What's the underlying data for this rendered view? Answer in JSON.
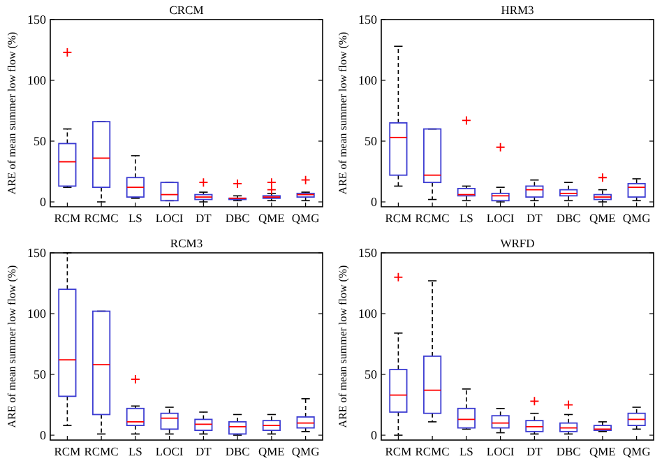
{
  "chart_data": [
    {
      "type": "box",
      "title": "CRCM",
      "ylabel": "ARE of mean summer low flow (%)",
      "categories": [
        "RCM",
        "RCMC",
        "LS",
        "LOCI",
        "DT",
        "DBC",
        "QME",
        "QMG"
      ],
      "ylim": [
        -4,
        150
      ],
      "yticks": [
        0,
        50,
        100,
        150
      ],
      "grid": false,
      "series": [
        {
          "color": "#3c3cd2",
          "boxes": [
            {
              "low": 12,
              "q1": 13,
              "median": 33,
              "q3": 48,
              "high": 60,
              "outliers": [
                123
              ]
            },
            {
              "low": 0,
              "q1": 12,
              "median": 36,
              "q3": 66,
              "high": 66
            },
            {
              "low": 3,
              "q1": 4,
              "median": 12,
              "q3": 20,
              "high": 38
            },
            {
              "low": 1,
              "q1": 1,
              "median": 6,
              "q3": 16,
              "high": 16
            },
            {
              "low": 0,
              "q1": 2,
              "median": 4,
              "q3": 6,
              "high": 8,
              "outliers": [
                16
              ]
            },
            {
              "low": 1,
              "q1": 2,
              "median": 3,
              "q3": 3,
              "high": 5,
              "outliers": [
                15
              ]
            },
            {
              "low": 1,
              "q1": 3,
              "median": 4,
              "q3": 5,
              "high": 7,
              "outliers": [
                10,
                16
              ]
            },
            {
              "low": 1,
              "q1": 4,
              "median": 6,
              "q3": 7,
              "high": 8,
              "outliers": [
                18
              ]
            }
          ]
        }
      ]
    },
    {
      "type": "box",
      "title": "HRM3",
      "ylabel": "ARE of mean summer low flow (%)",
      "categories": [
        "RCM",
        "RCMC",
        "LS",
        "LOCI",
        "DT",
        "DBC",
        "QME",
        "QMG"
      ],
      "ylim": [
        -4,
        150
      ],
      "yticks": [
        0,
        50,
        100,
        150
      ],
      "grid": false,
      "series": [
        {
          "color": "#3c3cd2",
          "boxes": [
            {
              "low": 13,
              "q1": 22,
              "median": 53,
              "q3": 65,
              "high": 128
            },
            {
              "low": 2,
              "q1": 16,
              "median": 22,
              "q3": 60,
              "high": 60
            },
            {
              "low": 1,
              "q1": 5,
              "median": 6,
              "q3": 11,
              "high": 13,
              "outliers": [
                67
              ]
            },
            {
              "low": 0,
              "q1": 1,
              "median": 5,
              "q3": 7,
              "high": 12,
              "outliers": [
                45
              ]
            },
            {
              "low": 1,
              "q1": 4,
              "median": 10,
              "q3": 13,
              "high": 18
            },
            {
              "low": 1,
              "q1": 5,
              "median": 7,
              "q3": 10,
              "high": 16
            },
            {
              "low": 0,
              "q1": 2,
              "median": 4,
              "q3": 6,
              "high": 10,
              "outliers": [
                20
              ]
            },
            {
              "low": 1,
              "q1": 4,
              "median": 12,
              "q3": 15,
              "high": 19
            }
          ]
        }
      ]
    },
    {
      "type": "box",
      "title": "RCM3",
      "ylabel": "ARE of mean summer low flow (%)",
      "categories": [
        "RCM",
        "RCMC",
        "LS",
        "LOCI",
        "DT",
        "DBC",
        "QME",
        "QMG"
      ],
      "ylim": [
        -4,
        150
      ],
      "yticks": [
        0,
        50,
        100,
        150
      ],
      "grid": false,
      "series": [
        {
          "color": "#3c3cd2",
          "boxes": [
            {
              "low": 8,
              "q1": 32,
              "median": 62,
              "q3": 120,
              "high": 150
            },
            {
              "low": 1,
              "q1": 17,
              "median": 58,
              "q3": 102,
              "high": 102
            },
            {
              "low": 1,
              "q1": 8,
              "median": 11,
              "q3": 22,
              "high": 24,
              "outliers": [
                46
              ]
            },
            {
              "low": 1,
              "q1": 5,
              "median": 14,
              "q3": 18,
              "high": 23
            },
            {
              "low": 1,
              "q1": 4,
              "median": 9,
              "q3": 13,
              "high": 19
            },
            {
              "low": 0,
              "q1": 1,
              "median": 7,
              "q3": 11,
              "high": 17
            },
            {
              "low": 1,
              "q1": 4,
              "median": 8,
              "q3": 12,
              "high": 17
            },
            {
              "low": 3,
              "q1": 6,
              "median": 10,
              "q3": 15,
              "high": 30
            }
          ]
        }
      ]
    },
    {
      "type": "box",
      "title": "WRFD",
      "ylabel": "ARE of mean summer low flow (%)",
      "categories": [
        "RCM",
        "RCMC",
        "LS",
        "LOCI",
        "DT",
        "DBC",
        "QME",
        "QMG"
      ],
      "ylim": [
        -4,
        150
      ],
      "yticks": [
        0,
        50,
        100,
        150
      ],
      "grid": false,
      "series": [
        {
          "color": "#3c3cd2",
          "boxes": [
            {
              "low": 0,
              "q1": 19,
              "median": 33,
              "q3": 54,
              "high": 84,
              "outliers": [
                130
              ]
            },
            {
              "low": 11,
              "q1": 18,
              "median": 37,
              "q3": 65,
              "high": 127
            },
            {
              "low": 5,
              "q1": 6,
              "median": 13,
              "q3": 22,
              "high": 38
            },
            {
              "low": 2,
              "q1": 6,
              "median": 10,
              "q3": 16,
              "high": 22
            },
            {
              "low": 1,
              "q1": 3,
              "median": 7,
              "q3": 12,
              "high": 18,
              "outliers": [
                28
              ]
            },
            {
              "low": 1,
              "q1": 3,
              "median": 6,
              "q3": 10,
              "high": 17,
              "outliers": [
                25
              ]
            },
            {
              "low": 3,
              "q1": 4,
              "median": 5,
              "q3": 8,
              "high": 11
            },
            {
              "low": 5,
              "q1": 8,
              "median": 13,
              "q3": 18,
              "high": 23
            }
          ]
        }
      ]
    }
  ]
}
